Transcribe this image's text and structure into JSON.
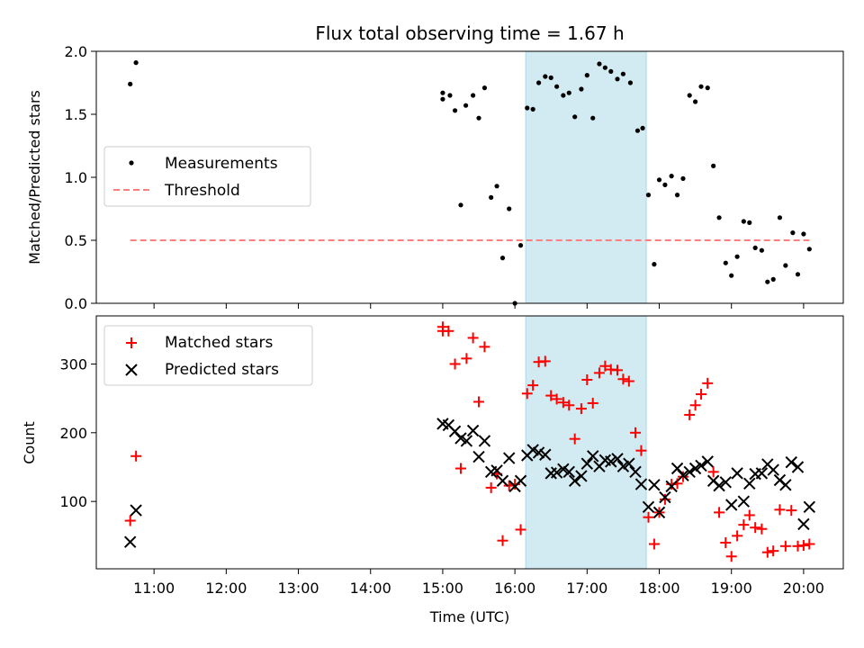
{
  "chart_data": [
    {
      "type": "scatter",
      "title": "Flux total observing time = 1.67 h",
      "xlabel": "",
      "ylabel": "Matched/Predicted stars",
      "ylim": [
        0.0,
        2.0
      ],
      "yticks": [
        0.0,
        0.5,
        1.0,
        1.5,
        2.0
      ],
      "ytick_labels": [
        "0.0",
        "0.5",
        "1.0",
        "1.5",
        "2.0"
      ],
      "xlim_hours": [
        10.2,
        20.55
      ],
      "highlight_span_hours": [
        16.15,
        17.82
      ],
      "highlight_color": "#add8e6",
      "legend_position": "center-left",
      "series": [
        {
          "name": "Measurements",
          "marker": "dot",
          "color": "#000000",
          "points": [
            [
              10.67,
              1.74
            ],
            [
              10.75,
              1.91
            ],
            [
              15.0,
              1.62
            ],
            [
              15.0,
              1.67
            ],
            [
              15.1,
              1.65
            ],
            [
              15.17,
              1.53
            ],
            [
              15.25,
              0.78
            ],
            [
              15.32,
              1.57
            ],
            [
              15.42,
              1.65
            ],
            [
              15.5,
              1.47
            ],
            [
              15.58,
              1.71
            ],
            [
              15.67,
              0.84
            ],
            [
              15.75,
              0.93
            ],
            [
              15.83,
              0.36
            ],
            [
              15.92,
              0.75
            ],
            [
              16.0,
              0.0
            ],
            [
              16.08,
              0.46
            ],
            [
              16.17,
              1.55
            ],
            [
              16.25,
              1.54
            ],
            [
              16.33,
              1.75
            ],
            [
              16.42,
              1.8
            ],
            [
              16.5,
              1.79
            ],
            [
              16.58,
              1.72
            ],
            [
              16.67,
              1.65
            ],
            [
              16.75,
              1.67
            ],
            [
              16.83,
              1.48
            ],
            [
              16.92,
              1.7
            ],
            [
              17.0,
              1.81
            ],
            [
              17.08,
              1.47
            ],
            [
              17.17,
              1.9
            ],
            [
              17.25,
              1.87
            ],
            [
              17.33,
              1.84
            ],
            [
              17.42,
              1.78
            ],
            [
              17.5,
              1.82
            ],
            [
              17.6,
              1.75
            ],
            [
              17.7,
              1.37
            ],
            [
              17.77,
              1.39
            ],
            [
              17.85,
              0.86
            ],
            [
              17.93,
              0.31
            ],
            [
              18.0,
              0.98
            ],
            [
              18.08,
              0.94
            ],
            [
              18.17,
              1.01
            ],
            [
              18.25,
              0.86
            ],
            [
              18.33,
              0.99
            ],
            [
              18.42,
              1.65
            ],
            [
              18.5,
              1.6
            ],
            [
              18.58,
              1.72
            ],
            [
              18.67,
              1.71
            ],
            [
              18.75,
              1.09
            ],
            [
              18.83,
              0.68
            ],
            [
              18.92,
              0.32
            ],
            [
              19.0,
              0.22
            ],
            [
              19.08,
              0.37
            ],
            [
              19.17,
              0.65
            ],
            [
              19.25,
              0.64
            ],
            [
              19.33,
              0.44
            ],
            [
              19.42,
              0.42
            ],
            [
              19.5,
              0.17
            ],
            [
              19.58,
              0.19
            ],
            [
              19.67,
              0.68
            ],
            [
              19.75,
              0.3
            ],
            [
              19.85,
              0.56
            ],
            [
              19.92,
              0.23
            ],
            [
              20.0,
              0.55
            ],
            [
              20.08,
              0.43
            ]
          ]
        },
        {
          "name": "Threshold",
          "marker": "dashed-line",
          "color": "#ff7f7f",
          "points": [
            [
              10.67,
              0.5
            ],
            [
              20.08,
              0.5
            ]
          ]
        }
      ]
    },
    {
      "type": "scatter",
      "title": "",
      "xlabel": "Time (UTC)",
      "ylabel": "Count",
      "ylim": [
        2,
        370
      ],
      "yticks": [
        100,
        200,
        300
      ],
      "ytick_labels": [
        "100",
        "200",
        "300"
      ],
      "xlim_hours": [
        10.2,
        20.55
      ],
      "xticks_hours": [
        11,
        12,
        13,
        14,
        15,
        16,
        17,
        18,
        19,
        20
      ],
      "xtick_labels": [
        "11:00",
        "12:00",
        "13:00",
        "14:00",
        "15:00",
        "16:00",
        "17:00",
        "18:00",
        "19:00",
        "20:00"
      ],
      "highlight_span_hours": [
        16.15,
        17.82
      ],
      "highlight_color": "#add8e6",
      "legend_position": "top-left",
      "series": [
        {
          "name": "Matched stars",
          "marker": "plus",
          "color": "#ff0000",
          "points": [
            [
              10.67,
              72
            ],
            [
              10.75,
              166
            ],
            [
              15.0,
              348
            ],
            [
              15.0,
              354
            ],
            [
              15.08,
              348
            ],
            [
              15.17,
              300
            ],
            [
              15.25,
              148
            ],
            [
              15.33,
              308
            ],
            [
              15.42,
              338
            ],
            [
              15.5,
              245
            ],
            [
              15.58,
              325
            ],
            [
              15.67,
              120
            ],
            [
              15.75,
              140
            ],
            [
              15.83,
              43
            ],
            [
              15.92,
              123
            ],
            [
              16.0,
              125
            ],
            [
              16.08,
              59
            ],
            [
              16.17,
              257
            ],
            [
              16.25,
              269
            ],
            [
              16.33,
              303
            ],
            [
              16.42,
              304
            ],
            [
              16.5,
              254
            ],
            [
              16.58,
              249
            ],
            [
              16.67,
              244
            ],
            [
              16.75,
              240
            ],
            [
              16.83,
              191
            ],
            [
              16.92,
              235
            ],
            [
              17.0,
              277
            ],
            [
              17.08,
              243
            ],
            [
              17.17,
              287
            ],
            [
              17.25,
              297
            ],
            [
              17.33,
              292
            ],
            [
              17.42,
              291
            ],
            [
              17.5,
              278
            ],
            [
              17.58,
              275
            ],
            [
              17.67,
              200
            ],
            [
              17.75,
              174
            ],
            [
              17.85,
              77
            ],
            [
              17.93,
              38
            ],
            [
              18.0,
              84
            ],
            [
              18.08,
              103
            ],
            [
              18.17,
              125
            ],
            [
              18.25,
              126
            ],
            [
              18.33,
              136
            ],
            [
              18.42,
              226
            ],
            [
              18.5,
              240
            ],
            [
              18.58,
              256
            ],
            [
              18.67,
              272
            ],
            [
              18.75,
              143
            ],
            [
              18.83,
              84
            ],
            [
              18.92,
              40
            ],
            [
              19.0,
              20
            ],
            [
              19.08,
              50
            ],
            [
              19.17,
              66
            ],
            [
              19.25,
              80
            ],
            [
              19.33,
              62
            ],
            [
              19.42,
              60
            ],
            [
              19.5,
              26
            ],
            [
              19.58,
              28
            ],
            [
              19.67,
              88
            ],
            [
              19.75,
              35
            ],
            [
              19.83,
              87
            ],
            [
              19.92,
              35
            ],
            [
              20.0,
              36
            ],
            [
              20.08,
              38
            ]
          ]
        },
        {
          "name": "Predicted stars",
          "marker": "x",
          "color": "#000000",
          "points": [
            [
              10.67,
              41
            ],
            [
              10.75,
              87
            ],
            [
              15.0,
              213
            ],
            [
              15.08,
              211
            ],
            [
              15.17,
              202
            ],
            [
              15.25,
              192
            ],
            [
              15.33,
              188
            ],
            [
              15.42,
              203
            ],
            [
              15.5,
              165
            ],
            [
              15.58,
              188
            ],
            [
              15.67,
              143
            ],
            [
              15.75,
              145
            ],
            [
              15.83,
              130
            ],
            [
              15.92,
              163
            ],
            [
              16.0,
              122
            ],
            [
              16.08,
              130
            ],
            [
              16.17,
              167
            ],
            [
              16.25,
              175
            ],
            [
              16.33,
              171
            ],
            [
              16.42,
              168
            ],
            [
              16.5,
              141
            ],
            [
              16.58,
              142
            ],
            [
              16.67,
              147
            ],
            [
              16.75,
              143
            ],
            [
              16.83,
              130
            ],
            [
              16.92,
              137
            ],
            [
              17.0,
              155
            ],
            [
              17.08,
              166
            ],
            [
              17.17,
              151
            ],
            [
              17.25,
              160
            ],
            [
              17.33,
              158
            ],
            [
              17.42,
              162
            ],
            [
              17.5,
              151
            ],
            [
              17.58,
              155
            ],
            [
              17.67,
              143
            ],
            [
              17.75,
              125
            ],
            [
              17.85,
              92
            ],
            [
              17.93,
              124
            ],
            [
              18.0,
              84
            ],
            [
              18.08,
              106
            ],
            [
              18.17,
              122
            ],
            [
              18.25,
              148
            ],
            [
              18.33,
              138
            ],
            [
              18.42,
              143
            ],
            [
              18.5,
              148
            ],
            [
              18.58,
              152
            ],
            [
              18.67,
              158
            ],
            [
              18.75,
              130
            ],
            [
              18.83,
              123
            ],
            [
              18.92,
              128
            ],
            [
              19.0,
              95
            ],
            [
              19.08,
              141
            ],
            [
              19.17,
              100
            ],
            [
              19.25,
              126
            ],
            [
              19.33,
              140
            ],
            [
              19.42,
              141
            ],
            [
              19.5,
              154
            ],
            [
              19.58,
              146
            ],
            [
              19.67,
              131
            ],
            [
              19.75,
              124
            ],
            [
              19.83,
              157
            ],
            [
              19.92,
              150
            ],
            [
              20.0,
              67
            ],
            [
              20.08,
              92
            ]
          ]
        }
      ]
    }
  ]
}
